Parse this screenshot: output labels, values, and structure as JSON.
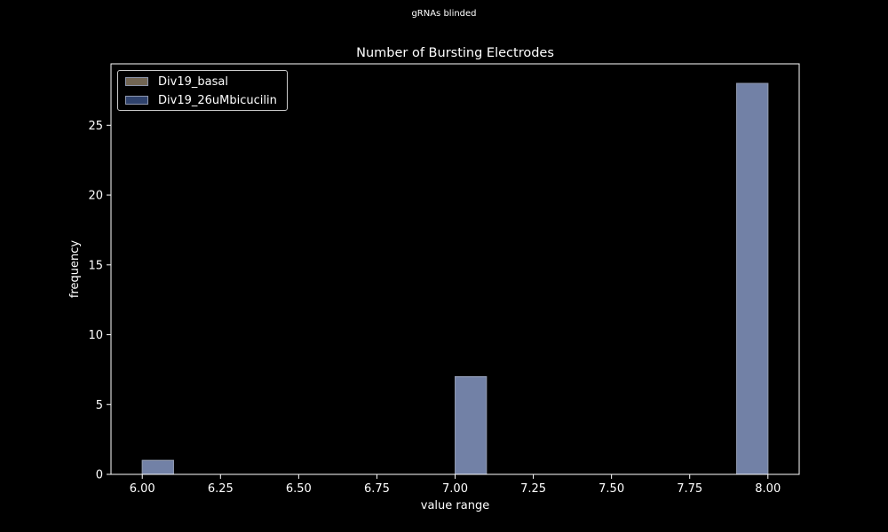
{
  "figure": {
    "suptitle": "gRNAs blinded",
    "background": "#000000"
  },
  "chart_data": {
    "type": "bar",
    "title": "Number of Bursting Electrodes",
    "xlabel": "value range",
    "ylabel": "frequency",
    "xlim": [
      5.9,
      8.1
    ],
    "ylim": [
      0,
      29.4
    ],
    "xticks": [
      "6.00",
      "6.25",
      "6.50",
      "6.75",
      "7.00",
      "7.25",
      "7.50",
      "7.75",
      "8.00"
    ],
    "yticks": [
      "0",
      "5",
      "10",
      "15",
      "20",
      "25"
    ],
    "grid": false,
    "legend_position": "top-left",
    "bin_width": 0.1,
    "series": [
      {
        "name": "Div19_basal",
        "color": "#bca98b",
        "bins": [
          {
            "x0": 6.0,
            "x1": 6.1,
            "value": 1
          },
          {
            "x0": 7.0,
            "x1": 7.1,
            "value": 7
          },
          {
            "x0": 7.9,
            "x1": 8.0,
            "value": 28
          }
        ]
      },
      {
        "name": "Div19_26uMbicucilin",
        "color": "#3b5387",
        "bins": [
          {
            "x0": 6.0,
            "x1": 6.1,
            "value": 1
          },
          {
            "x0": 7.0,
            "x1": 7.1,
            "value": 7
          },
          {
            "x0": 7.9,
            "x1": 8.0,
            "value": 28
          }
        ]
      }
    ],
    "overlap_color": "#7281a6"
  }
}
